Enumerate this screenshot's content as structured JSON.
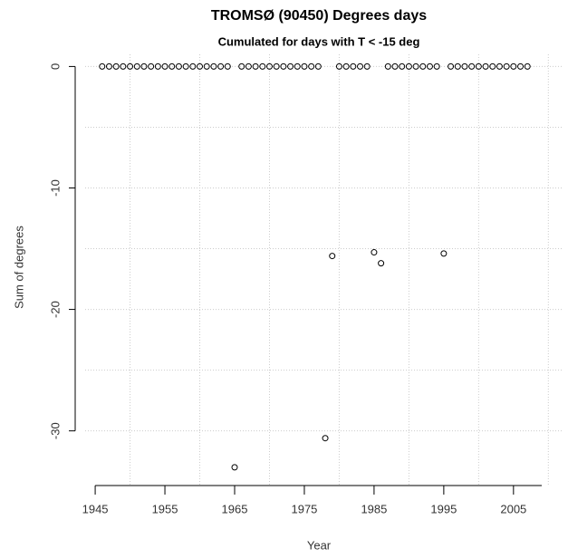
{
  "chart_data": {
    "type": "scatter",
    "title": "TROMSØ (90450) Degrees days",
    "subtitle": "Cumulated for days with T < -15 deg",
    "x_label": "Year",
    "y_label": "Sum of degrees",
    "x": [
      1946,
      1947,
      1948,
      1949,
      1950,
      1951,
      1952,
      1953,
      1954,
      1955,
      1956,
      1957,
      1958,
      1959,
      1960,
      1961,
      1962,
      1963,
      1964,
      1965,
      1966,
      1967,
      1968,
      1969,
      1970,
      1971,
      1972,
      1973,
      1974,
      1975,
      1976,
      1977,
      1978,
      1979,
      1980,
      1981,
      1982,
      1983,
      1984,
      1985,
      1986,
      1987,
      1988,
      1989,
      1990,
      1991,
      1992,
      1993,
      1994,
      1995,
      1996,
      1997,
      1998,
      1999,
      2000,
      2001,
      2002,
      2003,
      2004,
      2005,
      2006,
      2007
    ],
    "values": [
      0,
      0,
      0,
      0,
      0,
      0,
      0,
      0,
      0,
      0,
      0,
      0,
      0,
      0,
      0,
      0,
      0,
      0,
      0,
      -33.0,
      0,
      0,
      0,
      0,
      0,
      0,
      0,
      0,
      0,
      0,
      0,
      0,
      -30.6,
      -15.6,
      0,
      0,
      0,
      0,
      0,
      -15.3,
      -16.2,
      0,
      0,
      0,
      0,
      0,
      0,
      0,
      0,
      -15.4,
      0,
      0,
      0,
      0,
      0,
      0,
      0,
      0,
      0,
      0,
      0,
      0
    ],
    "color": "#000000",
    "xlim": [
      1943.56,
      2009.44
    ],
    "ylim": [
      -34.5,
      1.0
    ],
    "xticks": [
      1945,
      1955,
      1965,
      1975,
      1985,
      1995,
      2005
    ],
    "yticks": [
      0,
      -10,
      -20,
      -30
    ],
    "xgrid": [
      1950,
      1960,
      1970,
      1980,
      1990,
      2000,
      2010
    ],
    "ygrid": [
      0,
      -5,
      -10,
      -15,
      -20,
      -25,
      -30
    ],
    "grid": true
  }
}
